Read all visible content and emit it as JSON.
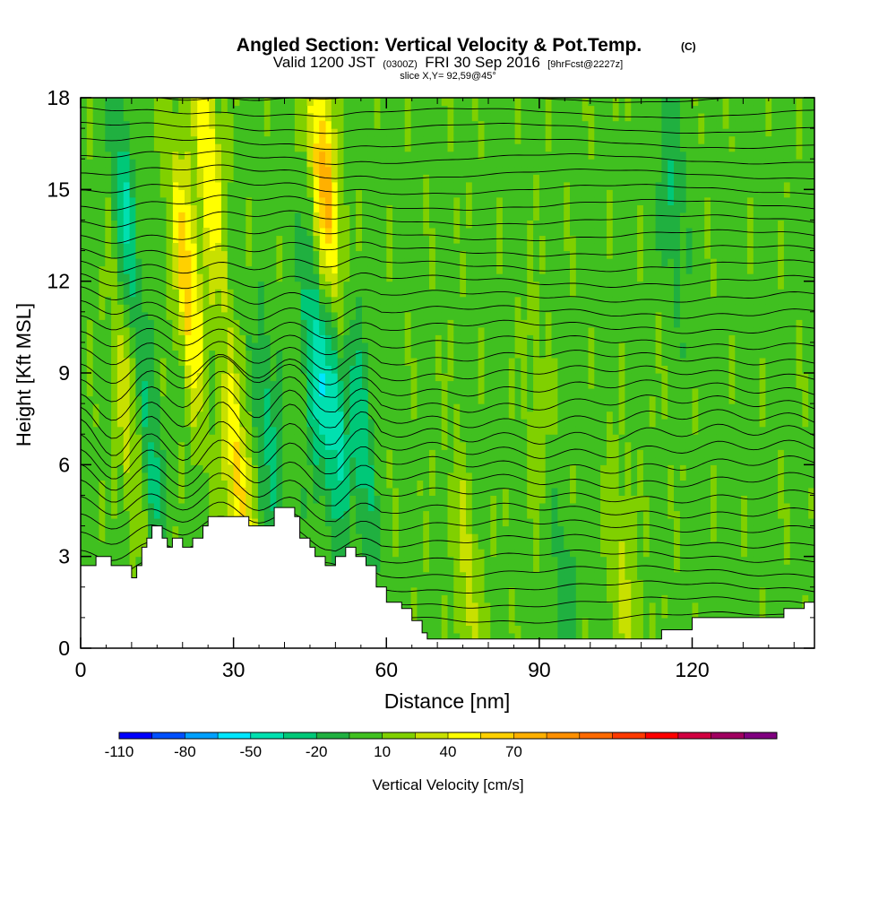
{
  "chart_data": {
    "type": "heatmap",
    "title": "Angled Section: Vertical Velocity & Pot.Temp.",
    "title_unit": "(C)",
    "subtitle": {
      "valid": "Valid 1200 JST",
      "utc": "(0300Z)",
      "date": "FRI 30 Sep 2016",
      "forecast": "[9hrFcst@2227z]"
    },
    "slice_label": "slice X,Y= 92,59@45°",
    "xlabel": "Distance [nm]",
    "ylabel": "Height [Kft MSL]",
    "xlim": [
      0,
      144
    ],
    "ylim": [
      0,
      18
    ],
    "x_ticks": [
      0,
      30,
      60,
      90,
      120
    ],
    "x_tick_labels": [
      "0",
      "30",
      "60",
      "90",
      "120"
    ],
    "y_ticks": [
      0,
      3,
      6,
      9,
      12,
      15,
      18
    ],
    "y_tick_labels": [
      "0",
      "3",
      "6",
      "9",
      "12",
      "15",
      "18"
    ],
    "colorbar": {
      "label": "Vertical Velocity [cm/s]",
      "tick_values": [
        -110,
        -80,
        -50,
        -20,
        10,
        40,
        70
      ],
      "tick_labels": [
        "-110",
        "-80",
        "-50",
        "-20",
        "10",
        "40",
        "70"
      ],
      "colors": [
        "#0000ff",
        "#0050ff",
        "#00a0ff",
        "#00e6ff",
        "#00e0b0",
        "#00c878",
        "#20b040",
        "#40c020",
        "#80d000",
        "#c8e000",
        "#ffff00",
        "#ffd000",
        "#ffb000",
        "#ff9000",
        "#ff6a00",
        "#ff3a00",
        "#ff0000",
        "#d00040",
        "#a00060",
        "#800080"
      ]
    },
    "terrain": [
      [
        0,
        2.7
      ],
      [
        3,
        2.7
      ],
      [
        3,
        3.0
      ],
      [
        6,
        3.0
      ],
      [
        6,
        2.7
      ],
      [
        10,
        2.7
      ],
      [
        10,
        2.3
      ],
      [
        11,
        2.3
      ],
      [
        11,
        2.7
      ],
      [
        12,
        2.7
      ],
      [
        12,
        3.3
      ],
      [
        13,
        3.3
      ],
      [
        13,
        3.6
      ],
      [
        14,
        3.6
      ],
      [
        14,
        4.0
      ],
      [
        16,
        4.0
      ],
      [
        16,
        3.6
      ],
      [
        17,
        3.6
      ],
      [
        17,
        3.3
      ],
      [
        18,
        3.3
      ],
      [
        18,
        3.6
      ],
      [
        20,
        3.6
      ],
      [
        20,
        3.3
      ],
      [
        22,
        3.3
      ],
      [
        22,
        3.6
      ],
      [
        24,
        3.6
      ],
      [
        24,
        4.0
      ],
      [
        25,
        4.0
      ],
      [
        25,
        4.3
      ],
      [
        33,
        4.3
      ],
      [
        33,
        4.0
      ],
      [
        38,
        4.0
      ],
      [
        38,
        4.6
      ],
      [
        42,
        4.6
      ],
      [
        42,
        4.3
      ],
      [
        43,
        4.3
      ],
      [
        43,
        3.6
      ],
      [
        45,
        3.6
      ],
      [
        45,
        3.3
      ],
      [
        46,
        3.3
      ],
      [
        46,
        3.0
      ],
      [
        48,
        3.0
      ],
      [
        48,
        2.7
      ],
      [
        50,
        2.7
      ],
      [
        50,
        3.0
      ],
      [
        52,
        3.0
      ],
      [
        52,
        3.3
      ],
      [
        54,
        3.3
      ],
      [
        54,
        3.0
      ],
      [
        56,
        3.0
      ],
      [
        56,
        2.7
      ],
      [
        58,
        2.7
      ],
      [
        58,
        2.0
      ],
      [
        60,
        2.0
      ],
      [
        60,
        1.5
      ],
      [
        63,
        1.5
      ],
      [
        63,
        1.3
      ],
      [
        65,
        1.3
      ],
      [
        65,
        0.9
      ],
      [
        67,
        0.9
      ],
      [
        67,
        0.5
      ],
      [
        68,
        0.5
      ],
      [
        68,
        0.3
      ],
      [
        114,
        0.3
      ],
      [
        114,
        0.6
      ],
      [
        120,
        0.6
      ],
      [
        120,
        1.0
      ],
      [
        138,
        1.0
      ],
      [
        138,
        1.3
      ],
      [
        142,
        1.3
      ],
      [
        142,
        1.5
      ],
      [
        144,
        1.5
      ]
    ],
    "features": {
      "updrafts": [
        {
          "x": 21,
          "z": 12,
          "w": 60
        },
        {
          "x": 25,
          "z": 16,
          "w": 50
        },
        {
          "x": 31,
          "z": 5,
          "w": 55
        },
        {
          "x": 48,
          "z": 15,
          "w": 75
        },
        {
          "x": 9,
          "z": 8,
          "w": 30
        },
        {
          "x": 76,
          "z": 2,
          "w": 25
        },
        {
          "x": 107,
          "z": 2,
          "w": 25
        },
        {
          "x": 90,
          "z": 8,
          "w": 15
        }
      ],
      "downdrafts": [
        {
          "x": 9,
          "z": 14,
          "w": -40
        },
        {
          "x": 14,
          "z": 6,
          "w": -30
        },
        {
          "x": 46,
          "z": 9,
          "w": -45
        },
        {
          "x": 50,
          "z": 8,
          "w": -50
        },
        {
          "x": 55,
          "z": 7,
          "w": -35
        },
        {
          "x": 37,
          "z": 7,
          "w": -30
        },
        {
          "x": 95,
          "z": 2,
          "w": -20
        },
        {
          "x": 116,
          "z": 15,
          "w": -25
        }
      ]
    }
  }
}
